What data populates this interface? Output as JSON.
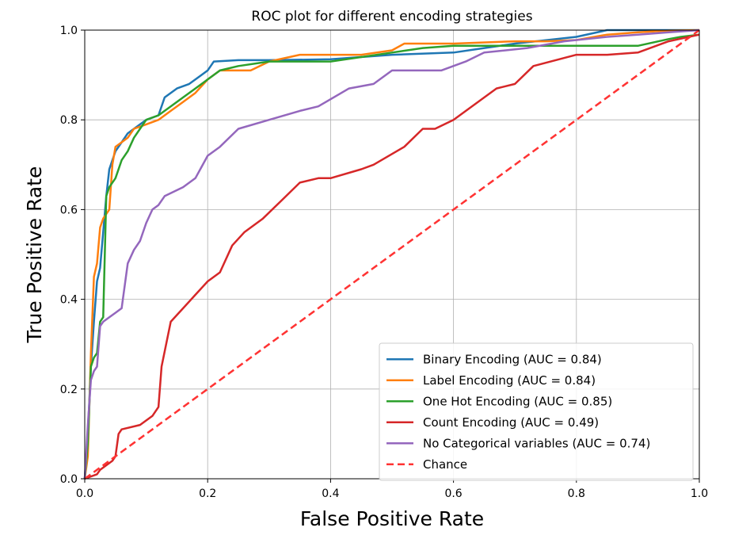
{
  "chart_data": {
    "type": "line",
    "title": "ROC plot for different encoding strategies",
    "xlabel": "False Positive Rate",
    "ylabel": "True Positive Rate",
    "xlim": [
      0.0,
      1.0
    ],
    "ylim": [
      0.0,
      1.0
    ],
    "xticks": [
      "0.0",
      "0.2",
      "0.4",
      "0.6",
      "0.8",
      "1.0"
    ],
    "yticks": [
      "0.0",
      "0.2",
      "0.4",
      "0.6",
      "0.8",
      "1.0"
    ],
    "grid": true,
    "legend_position": "lower-right",
    "series": [
      {
        "name": "Binary Encoding (AUC = 0.84)",
        "color": "#1f77b4",
        "style": "solid",
        "x": [
          0.0,
          0.005,
          0.01,
          0.015,
          0.02,
          0.025,
          0.03,
          0.035,
          0.04,
          0.05,
          0.06,
          0.07,
          0.08,
          0.09,
          0.1,
          0.12,
          0.13,
          0.15,
          0.17,
          0.19,
          0.2,
          0.21,
          0.25,
          0.3,
          0.4,
          0.5,
          0.6,
          0.7,
          0.8,
          0.85,
          0.9,
          0.95,
          1.0
        ],
        "y": [
          0.0,
          0.1,
          0.25,
          0.35,
          0.44,
          0.47,
          0.55,
          0.63,
          0.69,
          0.73,
          0.75,
          0.77,
          0.78,
          0.79,
          0.8,
          0.81,
          0.85,
          0.87,
          0.88,
          0.9,
          0.91,
          0.93,
          0.933,
          0.933,
          0.935,
          0.945,
          0.95,
          0.97,
          0.985,
          1.0,
          1.0,
          1.0,
          1.0
        ]
      },
      {
        "name": "Label Encoding (AUC = 0.84)",
        "color": "#ff7f0e",
        "style": "solid",
        "x": [
          0.0,
          0.005,
          0.01,
          0.015,
          0.02,
          0.025,
          0.03,
          0.04,
          0.045,
          0.05,
          0.06,
          0.07,
          0.08,
          0.1,
          0.12,
          0.14,
          0.16,
          0.18,
          0.2,
          0.22,
          0.27,
          0.3,
          0.35,
          0.45,
          0.5,
          0.52,
          0.6,
          0.7,
          0.75,
          0.8,
          0.85,
          0.9,
          0.95,
          1.0
        ],
        "y": [
          0.0,
          0.05,
          0.28,
          0.45,
          0.48,
          0.56,
          0.58,
          0.6,
          0.7,
          0.74,
          0.75,
          0.76,
          0.78,
          0.79,
          0.8,
          0.82,
          0.84,
          0.86,
          0.89,
          0.91,
          0.91,
          0.93,
          0.945,
          0.945,
          0.955,
          0.97,
          0.97,
          0.975,
          0.975,
          0.978,
          0.99,
          0.995,
          0.999,
          1.0
        ]
      },
      {
        "name": "One Hot Encoding (AUC = 0.85)",
        "color": "#2ca02c",
        "style": "solid",
        "x": [
          0.0,
          0.005,
          0.01,
          0.015,
          0.02,
          0.025,
          0.03,
          0.035,
          0.04,
          0.05,
          0.06,
          0.07,
          0.08,
          0.09,
          0.1,
          0.12,
          0.14,
          0.16,
          0.18,
          0.2,
          0.22,
          0.25,
          0.3,
          0.4,
          0.5,
          0.55,
          0.6,
          0.7,
          0.8,
          0.9,
          0.95,
          0.97,
          1.0
        ],
        "y": [
          0.0,
          0.08,
          0.25,
          0.27,
          0.28,
          0.35,
          0.36,
          0.63,
          0.65,
          0.67,
          0.71,
          0.73,
          0.76,
          0.78,
          0.8,
          0.81,
          0.83,
          0.85,
          0.87,
          0.89,
          0.91,
          0.92,
          0.93,
          0.93,
          0.95,
          0.96,
          0.965,
          0.965,
          0.965,
          0.965,
          0.98,
          0.985,
          0.99
        ]
      },
      {
        "name": "Count Encoding (AUC = 0.49)",
        "color": "#d62728",
        "style": "solid",
        "x": [
          0.0,
          0.02,
          0.025,
          0.035,
          0.045,
          0.05,
          0.055,
          0.06,
          0.09,
          0.11,
          0.12,
          0.125,
          0.14,
          0.16,
          0.18,
          0.2,
          0.22,
          0.24,
          0.26,
          0.29,
          0.32,
          0.35,
          0.38,
          0.4,
          0.45,
          0.47,
          0.52,
          0.55,
          0.57,
          0.6,
          0.64,
          0.67,
          0.7,
          0.73,
          0.8,
          0.85,
          0.9,
          0.95,
          1.0
        ],
        "y": [
          0.0,
          0.01,
          0.02,
          0.03,
          0.04,
          0.05,
          0.1,
          0.11,
          0.12,
          0.14,
          0.16,
          0.25,
          0.35,
          0.38,
          0.41,
          0.44,
          0.46,
          0.52,
          0.55,
          0.58,
          0.62,
          0.66,
          0.67,
          0.67,
          0.69,
          0.7,
          0.74,
          0.78,
          0.78,
          0.8,
          0.84,
          0.87,
          0.88,
          0.92,
          0.945,
          0.945,
          0.95,
          0.975,
          0.99
        ]
      },
      {
        "name": "No Categorical variables (AUC = 0.74)",
        "color": "#9467bd",
        "style": "solid",
        "x": [
          0.0,
          0.005,
          0.01,
          0.015,
          0.02,
          0.025,
          0.03,
          0.04,
          0.05,
          0.06,
          0.07,
          0.08,
          0.09,
          0.1,
          0.11,
          0.12,
          0.13,
          0.16,
          0.18,
          0.2,
          0.22,
          0.25,
          0.3,
          0.35,
          0.38,
          0.43,
          0.47,
          0.5,
          0.58,
          0.62,
          0.65,
          0.72,
          0.78,
          0.85,
          0.9,
          0.95,
          1.0
        ],
        "y": [
          0.0,
          0.12,
          0.22,
          0.24,
          0.25,
          0.34,
          0.35,
          0.36,
          0.37,
          0.38,
          0.48,
          0.51,
          0.53,
          0.57,
          0.6,
          0.61,
          0.63,
          0.65,
          0.67,
          0.72,
          0.74,
          0.78,
          0.8,
          0.82,
          0.83,
          0.87,
          0.88,
          0.91,
          0.91,
          0.93,
          0.95,
          0.96,
          0.975,
          0.985,
          0.99,
          0.995,
          1.0
        ]
      },
      {
        "name": "Chance",
        "color": "#ff3333",
        "style": "dashed",
        "x": [
          0.0,
          1.0
        ],
        "y": [
          0.0,
          1.0
        ]
      }
    ]
  }
}
